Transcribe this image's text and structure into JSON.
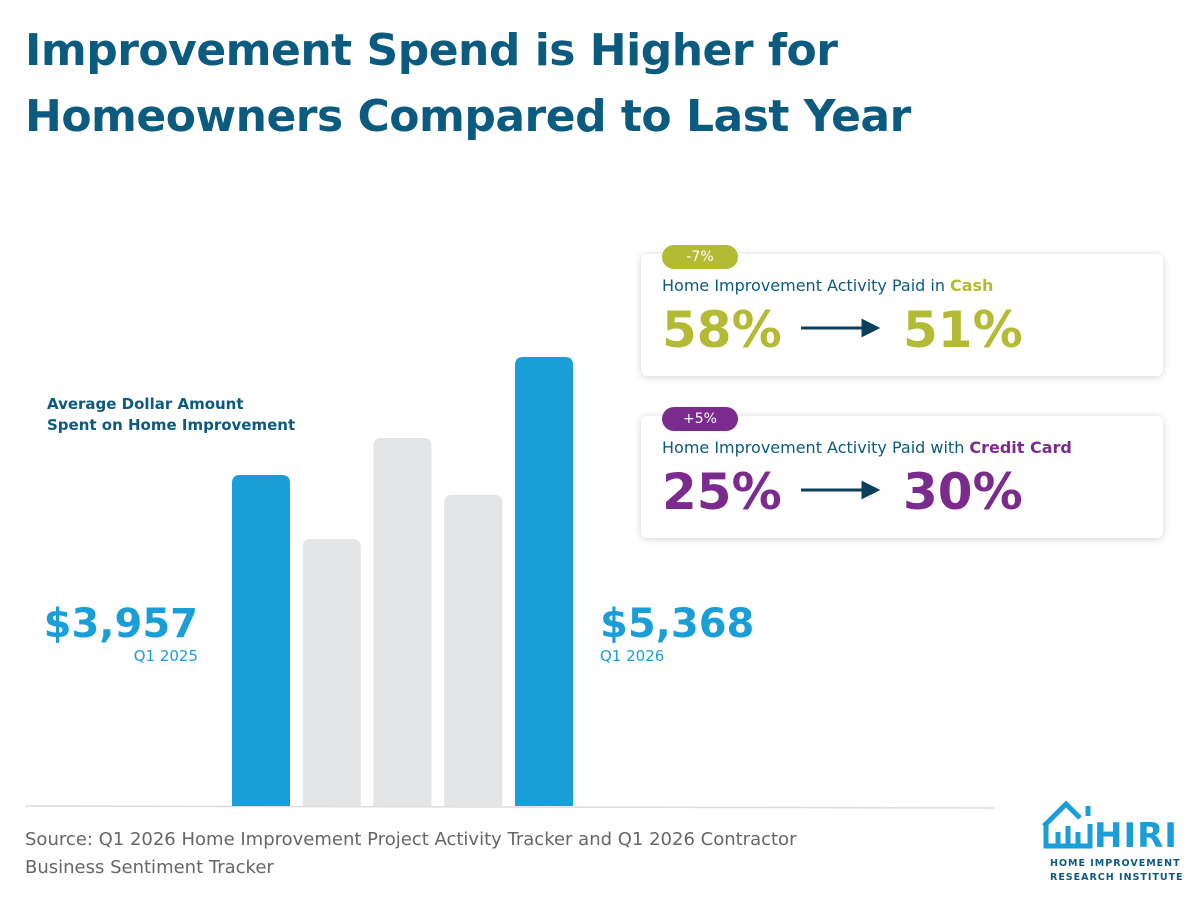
{
  "title": [
    "Improvement Spend is Higher for",
    "Homeowners Compared to Last Year"
  ],
  "chart_data": {
    "type": "bar",
    "label": [
      "Average Dollar Amount",
      "Spent on Home Improvement"
    ],
    "categories": [
      "Q1 2025",
      null,
      null,
      null,
      "Q1 2026"
    ],
    "values": [
      3957,
      3190,
      4400,
      3720,
      5368
    ],
    "value_labels": [
      "$3,957",
      null,
      null,
      null,
      "$5,368"
    ],
    "colors": [
      "#1a9ed8",
      "#e3e4e6",
      "#e3e4e6",
      "#e3e4e6",
      "#1a9ed8"
    ]
  },
  "cards": [
    {
      "badge": "-7%",
      "label": "Home Improvement Activity Paid in",
      "highlight": "Cash",
      "from": "58%",
      "to": "51%",
      "color": "#b3bb34"
    },
    {
      "badge": "+5%",
      "label": "Home Improvement Activity Paid with",
      "highlight": "Credit Card",
      "from": "25%",
      "to": "30%",
      "color": "#7b2b8d"
    }
  ],
  "source": [
    "Source: Q1 2026 Home Improvement Project Activity Tracker and Q1 2026 Contractor",
    "Business Sentiment Tracker"
  ],
  "logo": {
    "mark": "HIRI",
    "line1": "HOME IMPROVEMENT",
    "line2": "RESEARCH INSTITUTE"
  }
}
